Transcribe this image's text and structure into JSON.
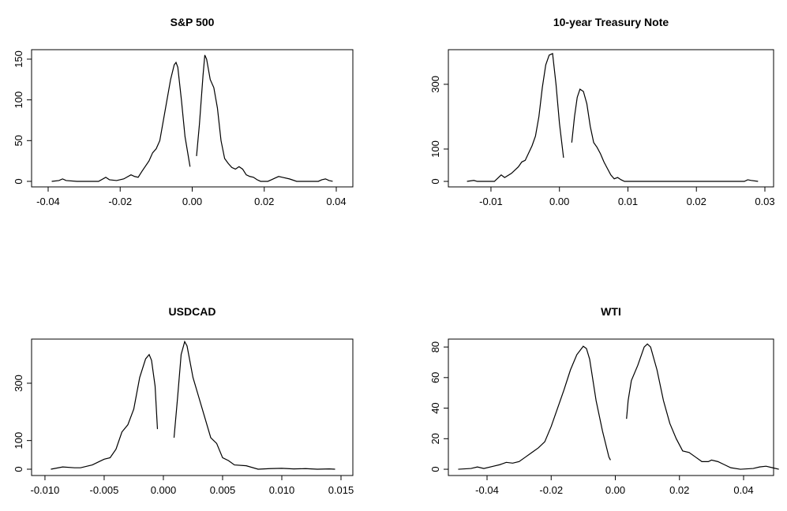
{
  "chart_data": [
    {
      "type": "line",
      "title": "S&P 500",
      "color": "#000000",
      "xlim": [
        -0.0446,
        0.0446
      ],
      "ylim": [
        -6.8,
        161.6
      ],
      "xticks": [
        -0.04,
        -0.02,
        {
          "value": 0,
          "label": "0.00"
        },
        0.02,
        0.04
      ],
      "yticks": [
        0,
        50,
        100,
        150
      ],
      "x": [
        -0.039,
        -0.037,
        -0.036,
        -0.035,
        -0.032,
        -0.026,
        -0.024,
        -0.023,
        -0.021,
        -0.019,
        -0.017,
        -0.016,
        -0.015,
        -0.014,
        -0.012,
        -0.011,
        -0.01,
        -0.009,
        -0.008,
        -0.007,
        -0.006,
        -0.005,
        -0.0045,
        -0.004,
        -0.003,
        -0.002,
        -0.0006,
        0.0003,
        0.0012,
        0.002,
        0.003,
        0.0035,
        0.004,
        0.005,
        0.006,
        0.007,
        0.008,
        0.009,
        0.01,
        0.011,
        0.012,
        0.013,
        0.014,
        0.015,
        0.016,
        0.017,
        0.018,
        0.019,
        0.021,
        0.022,
        0.023,
        0.024,
        0.025,
        0.027,
        0.029,
        0.035,
        0.036,
        0.037,
        0.038,
        0.039
      ],
      "values": [
        0,
        1,
        3,
        1,
        0,
        0,
        5,
        2,
        1,
        3,
        8,
        6,
        5,
        12,
        25,
        35,
        40,
        50,
        75,
        100,
        125,
        143,
        146,
        140,
        100,
        55,
        18,
        null,
        31,
        70,
        130,
        155,
        150,
        125,
        115,
        90,
        50,
        28,
        22,
        17,
        15,
        18,
        15,
        8,
        6,
        5,
        2,
        0,
        0,
        2,
        4,
        6,
        5,
        3,
        0,
        0,
        2,
        3,
        1,
        0
      ]
    },
    {
      "type": "line",
      "title": "10-year Treasury Note",
      "color": "#000000",
      "xlim": [
        -0.01622,
        0.03127
      ],
      "ylim": [
        -17,
        407
      ],
      "xticks": [
        -0.01,
        {
          "value": 0,
          "label": "0.00"
        },
        0.01,
        0.02,
        0.03
      ],
      "yticks": [
        0,
        100,
        300
      ],
      "x": [
        -0.0135,
        -0.0125,
        -0.012,
        -0.0095,
        -0.009,
        -0.0085,
        -0.008,
        -0.007,
        -0.006,
        -0.0055,
        -0.005,
        -0.004,
        -0.0035,
        -0.003,
        -0.0025,
        -0.002,
        -0.0015,
        -0.001,
        -0.0005,
        0,
        0.0006,
        0.0012,
        0.0018,
        0.0022,
        0.0026,
        0.003,
        0.0035,
        0.004,
        0.0045,
        0.005,
        0.0055,
        0.006,
        0.0065,
        0.007,
        0.0075,
        0.008,
        0.0085,
        0.009,
        0.0095,
        0.015,
        0.027,
        0.0275,
        0.028,
        0.029
      ],
      "values": [
        0,
        3,
        0,
        0,
        10,
        20,
        12,
        25,
        45,
        60,
        65,
        110,
        140,
        200,
        290,
        360,
        390,
        395,
        300,
        180,
        73,
        null,
        120,
        200,
        260,
        285,
        278,
        240,
        170,
        120,
        105,
        85,
        60,
        40,
        20,
        8,
        12,
        5,
        0,
        0,
        0,
        5,
        3,
        0
      ]
    },
    {
      "type": "line",
      "title": "USDCAD",
      "color": "#000000",
      "xlim": [
        -0.01113,
        0.016
      ],
      "ylim": [
        -22,
        454
      ],
      "xticks": [
        {
          "value": -0.01,
          "label": "-0.010"
        },
        -0.005,
        {
          "value": 0,
          "label": "0.000"
        },
        0.005,
        {
          "value": 0.01,
          "label": "0.010"
        },
        0.015
      ],
      "yticks": [
        0,
        100,
        300
      ],
      "x": [
        -0.0095,
        -0.0085,
        -0.0075,
        -0.007,
        -0.006,
        -0.005,
        -0.0045,
        -0.004,
        -0.0035,
        -0.003,
        -0.0025,
        -0.002,
        -0.0015,
        -0.0012,
        -0.001,
        -0.0007,
        -0.0005,
        0.0002,
        0.0009,
        0.0012,
        0.0015,
        0.0018,
        0.002,
        0.0025,
        0.003,
        0.0035,
        0.004,
        0.0045,
        0.005,
        0.0055,
        0.006,
        0.007,
        0.008,
        0.009,
        0.01,
        0.011,
        0.012,
        0.013,
        0.014,
        0.0145
      ],
      "values": [
        0,
        8,
        5,
        5,
        15,
        35,
        40,
        70,
        130,
        155,
        210,
        320,
        385,
        400,
        380,
        290,
        140,
        null,
        110,
        250,
        400,
        445,
        430,
        320,
        250,
        180,
        110,
        90,
        40,
        30,
        15,
        12,
        0,
        2,
        3,
        1,
        2,
        0,
        1,
        0
      ]
    },
    {
      "type": "line",
      "title": "WTI",
      "color": "#000000",
      "xlim": [
        -0.05206,
        0.04935
      ],
      "ylim": [
        -4.1,
        85.2
      ],
      "xticks": [
        -0.04,
        -0.02,
        {
          "value": 0,
          "label": "0.00"
        },
        0.02,
        0.04
      ],
      "yticks": [
        0,
        20,
        40,
        60,
        80
      ],
      "x": [
        -0.049,
        -0.045,
        -0.043,
        -0.041,
        -0.038,
        -0.036,
        -0.034,
        -0.032,
        -0.03,
        -0.028,
        -0.026,
        -0.024,
        -0.022,
        -0.02,
        -0.018,
        -0.016,
        -0.014,
        -0.012,
        -0.01,
        -0.009,
        -0.008,
        -0.006,
        -0.004,
        -0.002,
        -0.0015,
        0.001,
        0.0035,
        0.004,
        0.005,
        0.007,
        0.009,
        0.01,
        0.011,
        0.013,
        0.015,
        0.017,
        0.019,
        0.021,
        0.023,
        0.025,
        0.027,
        0.029,
        0.03,
        0.032,
        0.034,
        0.036,
        0.039,
        0.043,
        0.045,
        0.047,
        0.049,
        0.051
      ],
      "values": [
        0,
        0.5,
        1.5,
        0.5,
        2,
        3,
        4.5,
        4,
        5,
        8,
        11,
        14,
        18,
        28,
        40,
        52,
        65,
        75,
        80.5,
        79,
        72,
        45,
        25,
        8,
        6,
        null,
        33,
        45,
        58,
        68,
        80,
        82,
        80,
        65,
        45,
        30,
        20,
        12,
        11,
        8,
        5,
        5,
        6,
        5,
        3,
        1,
        0,
        0.5,
        1.5,
        2,
        1,
        0
      ]
    }
  ]
}
